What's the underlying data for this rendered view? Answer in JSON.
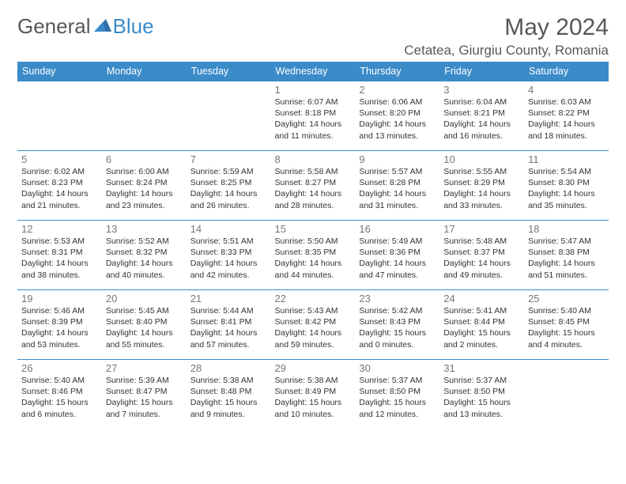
{
  "logo": {
    "text1": "General",
    "text2": "Blue"
  },
  "title": "May 2024",
  "location": "Cetatea, Giurgiu County, Romania",
  "colors": {
    "header_bg": "#3b8bc9",
    "header_fg": "#ffffff",
    "border": "#3b8bc9",
    "text_muted": "#777777",
    "text": "#333333",
    "logo_gray": "#56595b",
    "logo_blue": "#3b8bc9"
  },
  "daynames": [
    "Sunday",
    "Monday",
    "Tuesday",
    "Wednesday",
    "Thursday",
    "Friday",
    "Saturday"
  ],
  "weeks": [
    [
      {
        "n": "",
        "sr": "",
        "ss": "",
        "dl": ""
      },
      {
        "n": "",
        "sr": "",
        "ss": "",
        "dl": ""
      },
      {
        "n": "",
        "sr": "",
        "ss": "",
        "dl": ""
      },
      {
        "n": "1",
        "sr": "Sunrise: 6:07 AM",
        "ss": "Sunset: 8:18 PM",
        "dl": "Daylight: 14 hours and 11 minutes."
      },
      {
        "n": "2",
        "sr": "Sunrise: 6:06 AM",
        "ss": "Sunset: 8:20 PM",
        "dl": "Daylight: 14 hours and 13 minutes."
      },
      {
        "n": "3",
        "sr": "Sunrise: 6:04 AM",
        "ss": "Sunset: 8:21 PM",
        "dl": "Daylight: 14 hours and 16 minutes."
      },
      {
        "n": "4",
        "sr": "Sunrise: 6:03 AM",
        "ss": "Sunset: 8:22 PM",
        "dl": "Daylight: 14 hours and 18 minutes."
      }
    ],
    [
      {
        "n": "5",
        "sr": "Sunrise: 6:02 AM",
        "ss": "Sunset: 8:23 PM",
        "dl": "Daylight: 14 hours and 21 minutes."
      },
      {
        "n": "6",
        "sr": "Sunrise: 6:00 AM",
        "ss": "Sunset: 8:24 PM",
        "dl": "Daylight: 14 hours and 23 minutes."
      },
      {
        "n": "7",
        "sr": "Sunrise: 5:59 AM",
        "ss": "Sunset: 8:25 PM",
        "dl": "Daylight: 14 hours and 26 minutes."
      },
      {
        "n": "8",
        "sr": "Sunrise: 5:58 AM",
        "ss": "Sunset: 8:27 PM",
        "dl": "Daylight: 14 hours and 28 minutes."
      },
      {
        "n": "9",
        "sr": "Sunrise: 5:57 AM",
        "ss": "Sunset: 8:28 PM",
        "dl": "Daylight: 14 hours and 31 minutes."
      },
      {
        "n": "10",
        "sr": "Sunrise: 5:55 AM",
        "ss": "Sunset: 8:29 PM",
        "dl": "Daylight: 14 hours and 33 minutes."
      },
      {
        "n": "11",
        "sr": "Sunrise: 5:54 AM",
        "ss": "Sunset: 8:30 PM",
        "dl": "Daylight: 14 hours and 35 minutes."
      }
    ],
    [
      {
        "n": "12",
        "sr": "Sunrise: 5:53 AM",
        "ss": "Sunset: 8:31 PM",
        "dl": "Daylight: 14 hours and 38 minutes."
      },
      {
        "n": "13",
        "sr": "Sunrise: 5:52 AM",
        "ss": "Sunset: 8:32 PM",
        "dl": "Daylight: 14 hours and 40 minutes."
      },
      {
        "n": "14",
        "sr": "Sunrise: 5:51 AM",
        "ss": "Sunset: 8:33 PM",
        "dl": "Daylight: 14 hours and 42 minutes."
      },
      {
        "n": "15",
        "sr": "Sunrise: 5:50 AM",
        "ss": "Sunset: 8:35 PM",
        "dl": "Daylight: 14 hours and 44 minutes."
      },
      {
        "n": "16",
        "sr": "Sunrise: 5:49 AM",
        "ss": "Sunset: 8:36 PM",
        "dl": "Daylight: 14 hours and 47 minutes."
      },
      {
        "n": "17",
        "sr": "Sunrise: 5:48 AM",
        "ss": "Sunset: 8:37 PM",
        "dl": "Daylight: 14 hours and 49 minutes."
      },
      {
        "n": "18",
        "sr": "Sunrise: 5:47 AM",
        "ss": "Sunset: 8:38 PM",
        "dl": "Daylight: 14 hours and 51 minutes."
      }
    ],
    [
      {
        "n": "19",
        "sr": "Sunrise: 5:46 AM",
        "ss": "Sunset: 8:39 PM",
        "dl": "Daylight: 14 hours and 53 minutes."
      },
      {
        "n": "20",
        "sr": "Sunrise: 5:45 AM",
        "ss": "Sunset: 8:40 PM",
        "dl": "Daylight: 14 hours and 55 minutes."
      },
      {
        "n": "21",
        "sr": "Sunrise: 5:44 AM",
        "ss": "Sunset: 8:41 PM",
        "dl": "Daylight: 14 hours and 57 minutes."
      },
      {
        "n": "22",
        "sr": "Sunrise: 5:43 AM",
        "ss": "Sunset: 8:42 PM",
        "dl": "Daylight: 14 hours and 59 minutes."
      },
      {
        "n": "23",
        "sr": "Sunrise: 5:42 AM",
        "ss": "Sunset: 8:43 PM",
        "dl": "Daylight: 15 hours and 0 minutes."
      },
      {
        "n": "24",
        "sr": "Sunrise: 5:41 AM",
        "ss": "Sunset: 8:44 PM",
        "dl": "Daylight: 15 hours and 2 minutes."
      },
      {
        "n": "25",
        "sr": "Sunrise: 5:40 AM",
        "ss": "Sunset: 8:45 PM",
        "dl": "Daylight: 15 hours and 4 minutes."
      }
    ],
    [
      {
        "n": "26",
        "sr": "Sunrise: 5:40 AM",
        "ss": "Sunset: 8:46 PM",
        "dl": "Daylight: 15 hours and 6 minutes."
      },
      {
        "n": "27",
        "sr": "Sunrise: 5:39 AM",
        "ss": "Sunset: 8:47 PM",
        "dl": "Daylight: 15 hours and 7 minutes."
      },
      {
        "n": "28",
        "sr": "Sunrise: 5:38 AM",
        "ss": "Sunset: 8:48 PM",
        "dl": "Daylight: 15 hours and 9 minutes."
      },
      {
        "n": "29",
        "sr": "Sunrise: 5:38 AM",
        "ss": "Sunset: 8:49 PM",
        "dl": "Daylight: 15 hours and 10 minutes."
      },
      {
        "n": "30",
        "sr": "Sunrise: 5:37 AM",
        "ss": "Sunset: 8:50 PM",
        "dl": "Daylight: 15 hours and 12 minutes."
      },
      {
        "n": "31",
        "sr": "Sunrise: 5:37 AM",
        "ss": "Sunset: 8:50 PM",
        "dl": "Daylight: 15 hours and 13 minutes."
      },
      {
        "n": "",
        "sr": "",
        "ss": "",
        "dl": ""
      }
    ]
  ]
}
